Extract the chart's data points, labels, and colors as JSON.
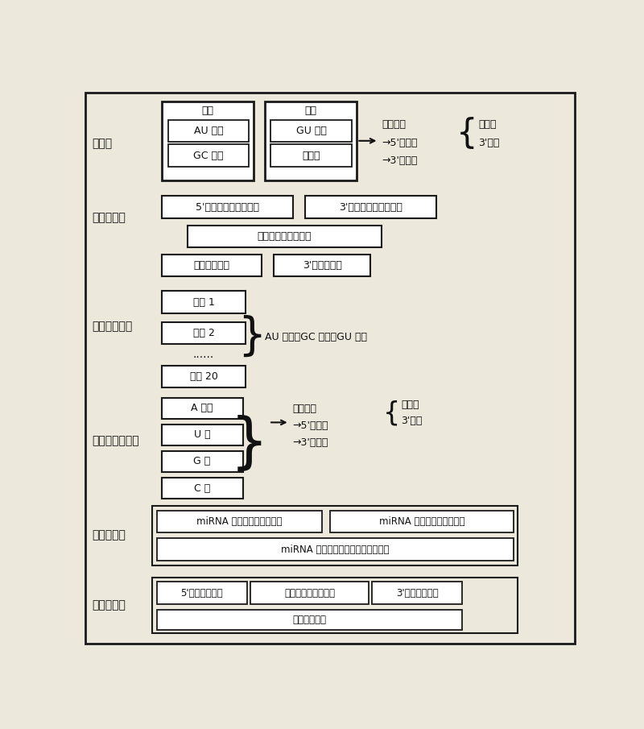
{
  "bg_color": "#ede8dc",
  "box_fc": "#ffffff",
  "border_color": "#1a1a1a",
  "text_color": "#111111",
  "fs": 10,
  "fs_small": 9,
  "fs_tiny": 8.5,
  "sec1_label": "结构特",
  "sec2_label": "热力学特征",
  "sec3_label": "基于位置特征",
  "sec4_label": "核苷酸组成特征",
  "sec5_label": "二级结构特",
  "sec6_label": "基于模式特",
  "match_outer": "匹配",
  "match_au": "AU 匹配",
  "match_gc": "GC 匹配",
  "mismatch_outer": "错配",
  "mismatch_gu": "GU 配对",
  "mismatch_other": "其他错",
  "binding_site": "结合位点",
  "flank5": "→5'側翅序",
  "flank3": "→3'側翅序",
  "seed_region": "种子区",
  "three_part": "3'部分",
  "thermo1a": "5'端側翅序列匹配自由",
  "thermo1b": "3'端側翅序列匹配自由",
  "thermo2": "结合位点匹配自由能",
  "thermo3a": "种子区自由能",
  "thermo3b": "3'部分自由能",
  "pos1": "位置 1",
  "pos2": "位置 2",
  "pos_dots": "......",
  "pos20": "位置 20",
  "pos_label": "AU 匹配，GC 匹配，GU 配对",
  "nuc_a": "A 含量",
  "nuc_u": "U 含",
  "nuc_g": "G 含",
  "nuc_c": "C 含",
  "sec5_box1": "miRNA 结合前二级结构自由",
  "sec5_box2": "miRNA 结合后二级结构自由",
  "sec5_box3": "miRNA 结合前后二级结构自由能变化",
  "sec6_box1": "5'側翅有效模式",
  "sec6_box2": "结合位点有效模式比",
  "sec6_box3": "3'側翅有效模式",
  "sec6_box4": "总有效模式比"
}
